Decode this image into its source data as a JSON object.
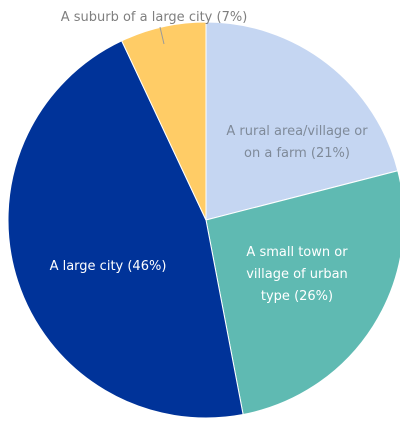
{
  "chart_data": {
    "type": "pie",
    "start_angle_deg": 0,
    "direction": "clockwise",
    "slices": [
      {
        "label_lines": [
          "A rural area/village or",
          "on a farm (21%)"
        ],
        "value": 21,
        "color": "#c5d6f2",
        "label_color": "#7f8a99"
      },
      {
        "label_lines": [
          "A small town or",
          "village of urban",
          "type (26%)"
        ],
        "value": 26,
        "color": "#5fbab2",
        "label_color": "#ffffff"
      },
      {
        "label_lines": [
          "A large city (46%)"
        ],
        "value": 46,
        "color": "#003399",
        "label_color": "#ffffff"
      },
      {
        "label_lines": [
          "A suburb of a large city (7%)"
        ],
        "value": 7,
        "color": "#ffcc66",
        "label_color": "#7f7f7f"
      }
    ]
  }
}
